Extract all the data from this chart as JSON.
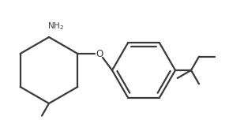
{
  "bg_color": "#ffffff",
  "line_color": "#3a3a3a",
  "line_width": 1.6,
  "font_color": "#3a3a3a",
  "figsize": [
    3.09,
    1.71
  ],
  "dpi": 100,
  "xlim": [
    0.0,
    3.09
  ],
  "ylim": [
    0.0,
    1.71
  ]
}
